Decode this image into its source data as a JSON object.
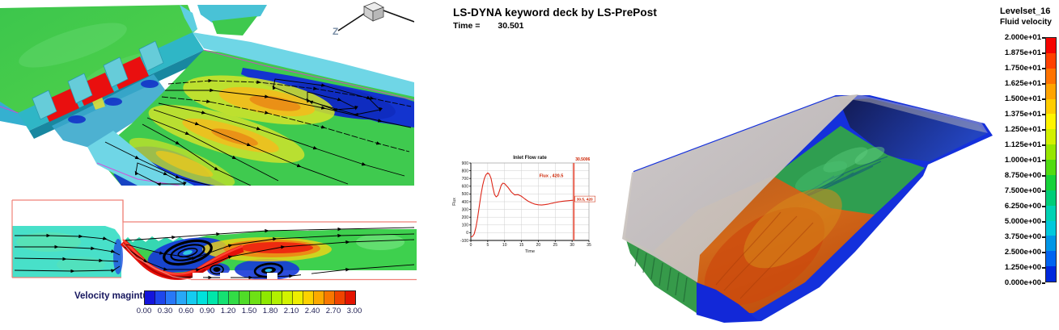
{
  "header": {
    "title": "LS-DYNA keyword deck by LS-PrePost",
    "time_label": "Time =",
    "time_value": "30.501"
  },
  "triad": {
    "axis_label": "Z"
  },
  "panels": {
    "dam_3d": "3D spillway gates view with velocity fringe and streamlines",
    "section_2d": "2D velocity-magnitude section with gate jet and vortices",
    "chute_3d": "3D chute fluid-velocity isosurface view"
  },
  "velocity_colorbar": {
    "label": "Velocity magintude",
    "ticks": [
      "0.00",
      "0.30",
      "0.60",
      "0.90",
      "1.20",
      "1.50",
      "1.80",
      "2.10",
      "2.40",
      "2.70",
      "3.00"
    ],
    "colors": [
      "#1414dc",
      "#1e46ec",
      "#2878f8",
      "#28a8f8",
      "#14ccf0",
      "#00e2dc",
      "#00e6aa",
      "#14e172",
      "#32dc46",
      "#50dc28",
      "#6ee114",
      "#8ee800",
      "#b2f000",
      "#d2f200",
      "#eeee00",
      "#fcd200",
      "#fcaa00",
      "#f87800",
      "#f04400",
      "#e41400"
    ]
  },
  "fluid_legend": {
    "title": "Levelset_16",
    "subtitle": "Fluid velocity",
    "labels": [
      "2.000e+01",
      "1.875e+01",
      "1.750e+01",
      "1.625e+01",
      "1.500e+01",
      "1.375e+01",
      "1.250e+01",
      "1.125e+01",
      "1.000e+01",
      "8.750e+00",
      "7.500e+00",
      "6.250e+00",
      "5.000e+00",
      "3.750e+00",
      "2.500e+00",
      "1.250e+00",
      "0.000e+00"
    ],
    "colors": [
      "#f50400",
      "#ff4000",
      "#ff7300",
      "#ffa400",
      "#ffcd00",
      "#fff400",
      "#d3f000",
      "#97e600",
      "#52dc12",
      "#16d23a",
      "#00cd78",
      "#00d2b4",
      "#00c9dc",
      "#0096e6",
      "#0063f0",
      "#0028dc"
    ]
  },
  "chart_data": {
    "type": "line",
    "title": "Inlet Flow rate",
    "xlabel": "Time",
    "ylabel": "Flux",
    "xlim": [
      0,
      35
    ],
    "ylim": [
      -100,
      900
    ],
    "xticks": [
      0,
      5,
      10,
      15,
      20,
      25,
      30,
      35
    ],
    "yticks": [
      -100,
      0,
      100,
      200,
      300,
      400,
      500,
      600,
      700,
      800,
      900
    ],
    "grid": true,
    "legend_position": "none",
    "line_color": "#dd2618",
    "cursor_color": "#e8604f",
    "label_color": "#cc2200",
    "x": [
      0,
      0.5,
      1,
      1.5,
      2,
      2.5,
      3,
      3.5,
      4,
      4.5,
      5,
      5.5,
      6,
      6.5,
      7,
      7.5,
      8,
      8.5,
      9,
      9.5,
      10,
      11,
      12,
      13,
      14,
      15,
      16,
      17,
      18,
      19,
      20,
      21,
      22,
      23,
      24,
      25,
      26,
      27,
      28,
      29,
      30,
      30.5
    ],
    "y": [
      -55,
      -48,
      -15,
      70,
      190,
      340,
      490,
      610,
      700,
      750,
      772,
      755,
      700,
      590,
      495,
      462,
      480,
      545,
      612,
      640,
      633,
      585,
      525,
      488,
      492,
      470,
      436,
      406,
      384,
      368,
      360,
      357,
      362,
      370,
      380,
      390,
      398,
      404,
      409,
      414,
      418,
      420
    ],
    "cursor_time": 30.5,
    "cursor_label": "30.5006",
    "point_label": "30.5, 420",
    "annotation": "Flux , 420.5"
  }
}
